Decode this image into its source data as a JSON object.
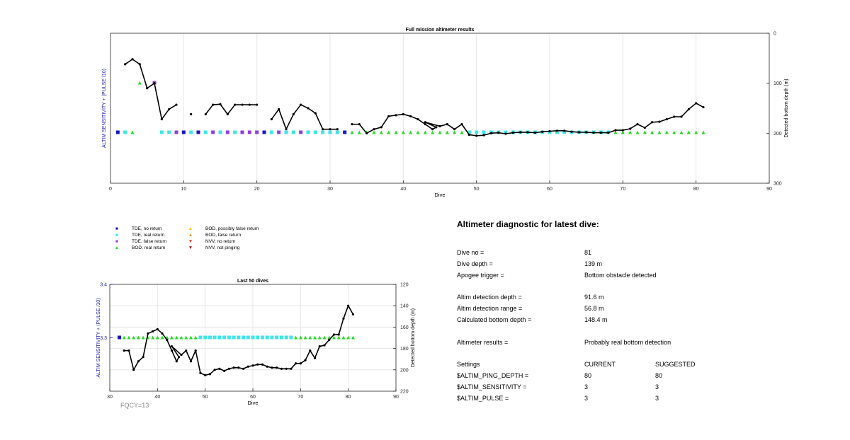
{
  "colors": {
    "tde_no_return": "#1515c8",
    "tde_real_return": "#3ce6e6",
    "tde_false_return": "#8a3fe0",
    "bod_real_return": "#22dd22",
    "bod_possibly_false": "#f2c200",
    "bod_false_return": "#f08a00",
    "nvv_no_return": "#e03010",
    "nvv_not_pinging": "#8b1a00",
    "left_axis": "#2020b0",
    "line": "#000000"
  },
  "chart_data": [
    {
      "type": "line",
      "title": "Full mission altimeter results",
      "xlabel": "Dive",
      "ylabel_left": "ALTIM SENSITIVITY + (PULSE /10)",
      "ylabel_right": "Detected bottom depth (m)",
      "xlim": [
        0,
        90
      ],
      "xticks": [
        "0",
        "10",
        "20",
        "30",
        "40",
        "50",
        "60",
        "70",
        "80",
        "90"
      ],
      "ylim_right": [
        300,
        0
      ],
      "yticks_right": [
        "0",
        "100",
        "200",
        "300"
      ],
      "grid": "x only",
      "depth_series": [
        [
          [
            2,
            62
          ],
          [
            3,
            52
          ],
          [
            4,
            62
          ],
          [
            5,
            110
          ],
          [
            6,
            100
          ],
          [
            7,
            172
          ],
          [
            8,
            152
          ],
          [
            9,
            143
          ]
        ],
        [
          [
            11,
            162
          ]
        ],
        [
          [
            13,
            162
          ],
          [
            14,
            143
          ],
          [
            15,
            142
          ],
          [
            16,
            162
          ],
          [
            17,
            143
          ],
          [
            18,
            143
          ],
          [
            19,
            143
          ],
          [
            20,
            143
          ]
        ],
        [
          [
            22,
            172
          ],
          [
            23,
            152
          ],
          [
            24,
            192
          ],
          [
            25,
            162
          ],
          [
            26,
            143
          ],
          [
            27,
            150
          ],
          [
            28,
            160
          ],
          [
            29,
            192
          ],
          [
            30,
            192
          ],
          [
            31,
            192
          ]
        ],
        [
          [
            33,
            182
          ],
          [
            34,
            182
          ],
          [
            35,
            200
          ],
          [
            36,
            192
          ],
          [
            37,
            188
          ],
          [
            38,
            166
          ],
          [
            39,
            164
          ],
          [
            40,
            162
          ],
          [
            41,
            166
          ],
          [
            42,
            172
          ],
          [
            43,
            182
          ],
          [
            44,
            192
          ],
          [
            44.5,
            188
          ],
          [
            43,
            178
          ],
          [
            45,
            186
          ],
          [
            46,
            182
          ],
          [
            47,
            192
          ],
          [
            48,
            182
          ],
          [
            49,
            203
          ],
          [
            50,
            205
          ],
          [
            51,
            204
          ],
          [
            52,
            200
          ],
          [
            53,
            199
          ],
          [
            54,
            201
          ],
          [
            55,
            199
          ],
          [
            56,
            198
          ],
          [
            57,
            198
          ],
          [
            58,
            199
          ],
          [
            59,
            197
          ],
          [
            60,
            196
          ],
          [
            61,
            195
          ],
          [
            62,
            195
          ],
          [
            63,
            197
          ],
          [
            64,
            198
          ],
          [
            65,
            198
          ],
          [
            66,
            199
          ],
          [
            67,
            199
          ],
          [
            68,
            199
          ],
          [
            69,
            194
          ],
          [
            70,
            194
          ],
          [
            71,
            191
          ],
          [
            72,
            182
          ],
          [
            73,
            189
          ],
          [
            74,
            178
          ],
          [
            75,
            177
          ],
          [
            76,
            172
          ],
          [
            77,
            167
          ],
          [
            78,
            167
          ],
          [
            79,
            152
          ],
          [
            80,
            140
          ],
          [
            81,
            148
          ]
        ]
      ],
      "markers": [
        {
          "dive": 1,
          "kind": "tde_no_return"
        },
        {
          "dive": 2,
          "kind": "tde_real_return"
        },
        {
          "dive": 3,
          "kind": "bod_real_return"
        },
        {
          "dive": 7,
          "kind": "tde_real_return"
        },
        {
          "dive": 8,
          "kind": "tde_real_return"
        },
        {
          "dive": 9,
          "kind": "tde_false_return"
        },
        {
          "dive": 10,
          "kind": "tde_no_return"
        },
        {
          "dive": 11,
          "kind": "tde_real_return"
        },
        {
          "dive": 12,
          "kind": "tde_no_return"
        },
        {
          "dive": 13,
          "kind": "tde_real_return"
        },
        {
          "dive": 14,
          "kind": "tde_false_return"
        },
        {
          "dive": 15,
          "kind": "tde_real_return"
        },
        {
          "dive": 16,
          "kind": "tde_false_return"
        },
        {
          "dive": 17,
          "kind": "tde_real_return"
        },
        {
          "dive": 18,
          "kind": "tde_false_return"
        },
        {
          "dive": 19,
          "kind": "tde_false_return"
        },
        {
          "dive": 20,
          "kind": "tde_false_return"
        },
        {
          "dive": 21,
          "kind": "tde_no_return"
        },
        {
          "dive": 22,
          "kind": "tde_real_return"
        },
        {
          "dive": 23,
          "kind": "tde_false_return"
        },
        {
          "dive": 24,
          "kind": "tde_real_return"
        },
        {
          "dive": 25,
          "kind": "tde_real_return"
        },
        {
          "dive": 26,
          "kind": "tde_false_return"
        },
        {
          "dive": 27,
          "kind": "tde_real_return"
        },
        {
          "dive": 28,
          "kind": "tde_real_return"
        },
        {
          "dive": 29,
          "kind": "tde_real_return"
        },
        {
          "dive": 30,
          "kind": "tde_real_return"
        },
        {
          "dive": 31,
          "kind": "tde_real_return"
        },
        {
          "dive": 32,
          "kind": "tde_no_return"
        },
        {
          "dive": 33,
          "kind": "bod_real_return"
        },
        {
          "dive": 34,
          "kind": "bod_real_return"
        },
        {
          "dive": 35,
          "kind": "bod_real_return"
        },
        {
          "dive": 36,
          "kind": "bod_real_return"
        },
        {
          "dive": 37,
          "kind": "bod_real_return"
        },
        {
          "dive": 38,
          "kind": "bod_real_return"
        },
        {
          "dive": 39,
          "kind": "bod_real_return"
        },
        {
          "dive": 40,
          "kind": "bod_real_return"
        },
        {
          "dive": 41,
          "kind": "bod_real_return"
        },
        {
          "dive": 42,
          "kind": "bod_real_return"
        },
        {
          "dive": 43,
          "kind": "bod_real_return"
        },
        {
          "dive": 44,
          "kind": "bod_real_return"
        },
        {
          "dive": 45,
          "kind": "bod_real_return"
        },
        {
          "dive": 46,
          "kind": "bod_real_return"
        },
        {
          "dive": 47,
          "kind": "bod_real_return"
        },
        {
          "dive": 48,
          "kind": "bod_real_return"
        },
        {
          "dive": 49,
          "kind": "tde_real_return"
        },
        {
          "dive": 50,
          "kind": "tde_real_return"
        },
        {
          "dive": 51,
          "kind": "tde_real_return"
        },
        {
          "dive": 52,
          "kind": "tde_real_return"
        },
        {
          "dive": 53,
          "kind": "tde_real_return"
        },
        {
          "dive": 54,
          "kind": "tde_real_return"
        },
        {
          "dive": 55,
          "kind": "tde_real_return"
        },
        {
          "dive": 56,
          "kind": "tde_real_return"
        },
        {
          "dive": 57,
          "kind": "tde_real_return"
        },
        {
          "dive": 58,
          "kind": "tde_real_return"
        },
        {
          "dive": 59,
          "kind": "tde_real_return"
        },
        {
          "dive": 60,
          "kind": "tde_real_return"
        },
        {
          "dive": 61,
          "kind": "tde_real_return"
        },
        {
          "dive": 62,
          "kind": "tde_real_return"
        },
        {
          "dive": 63,
          "kind": "tde_real_return"
        },
        {
          "dive": 64,
          "kind": "tde_real_return"
        },
        {
          "dive": 65,
          "kind": "tde_real_return"
        },
        {
          "dive": 66,
          "kind": "tde_real_return"
        },
        {
          "dive": 67,
          "kind": "tde_real_return"
        },
        {
          "dive": 68,
          "kind": "tde_real_return"
        },
        {
          "dive": 69,
          "kind": "bod_real_return"
        },
        {
          "dive": 70,
          "kind": "bod_real_return"
        },
        {
          "dive": 71,
          "kind": "bod_real_return"
        },
        {
          "dive": 72,
          "kind": "bod_real_return"
        },
        {
          "dive": 73,
          "kind": "bod_real_return"
        },
        {
          "dive": 74,
          "kind": "bod_real_return"
        },
        {
          "dive": 75,
          "kind": "bod_real_return"
        },
        {
          "dive": 76,
          "kind": "bod_real_return"
        },
        {
          "dive": 77,
          "kind": "bod_real_return"
        },
        {
          "dive": 78,
          "kind": "bod_real_return"
        },
        {
          "dive": 79,
          "kind": "bod_real_return"
        },
        {
          "dive": 80,
          "kind": "bod_real_return"
        },
        {
          "dive": 81,
          "kind": "bod_real_return"
        },
        {
          "dive": 4,
          "kind": "bod_real_return",
          "level": "high"
        },
        {
          "dive": 6,
          "kind": "tde_false_return",
          "level": "high"
        }
      ]
    },
    {
      "type": "line",
      "title": "Last 50 dives",
      "xlabel": "Dive",
      "ylabel_left": "ALTIM SENSITIVITY + (PULSE /10)",
      "ylabel_right": "Detected bottom depth (m)",
      "xlim": [
        30,
        90
      ],
      "xticks": [
        "30",
        "40",
        "50",
        "60",
        "70",
        "80",
        "90"
      ],
      "ylim_left": [
        3.2,
        3.4
      ],
      "yticks_left": [
        "3.3",
        "3.4"
      ],
      "ylim_right": [
        220,
        120
      ],
      "yticks_right": [
        "120",
        "140",
        "160",
        "180",
        "200",
        "220"
      ],
      "grid": "on",
      "marker_level": 3.3,
      "annotation": "FQCY=13"
    }
  ],
  "legend": [
    {
      "symbol": "square",
      "kind": "tde_no_return",
      "label": "TDE, no return"
    },
    {
      "symbol": "square",
      "kind": "tde_real_return",
      "label": "TDE, real return"
    },
    {
      "symbol": "square",
      "kind": "tde_false_return",
      "label": "TDE, false return"
    },
    {
      "symbol": "triangle-up",
      "kind": "bod_real_return",
      "label": "BOD, real return"
    },
    {
      "symbol": "triangle-up",
      "kind": "bod_possibly_false",
      "label": "BOD, possibly false return"
    },
    {
      "symbol": "triangle-up",
      "kind": "bod_false_return",
      "label": "BOD, false return"
    },
    {
      "symbol": "triangle-down",
      "kind": "nvv_no_return",
      "label": "NVV, no return"
    },
    {
      "symbol": "triangle-down",
      "kind": "nvv_not_pinging",
      "label": "NVV, not pinging"
    }
  ],
  "diagnostic": {
    "title": "Altimeter diagnostic for latest dive:",
    "rows": [
      {
        "label": "Dive no =",
        "value": "81"
      },
      {
        "label": "Dive depth =",
        "value": "139 m"
      },
      {
        "label": "Apogee trigger =",
        "value": "Bottom obstacle detected"
      },
      {
        "label": "Altim detection depth =",
        "value": "91.6 m"
      },
      {
        "label": "Altim detection range =",
        "value": "56.8 m"
      },
      {
        "label": "Calculated bottom depth =",
        "value": "148.4 m"
      },
      {
        "label": "Altimeter results =",
        "value": "Probably real bottom detection"
      }
    ],
    "settings_header": {
      "label": "Settings",
      "current": "CURRENT",
      "suggested": "SUGGESTED"
    },
    "settings": [
      {
        "name": "$ALTIM_PING_DEPTH =",
        "current": "80",
        "suggested": "80"
      },
      {
        "name": "$ALTIM_SENSITIVITY =",
        "current": "3",
        "suggested": "3"
      },
      {
        "name": "$ALTIM_PULSE =",
        "current": "3",
        "suggested": "3"
      }
    ]
  }
}
